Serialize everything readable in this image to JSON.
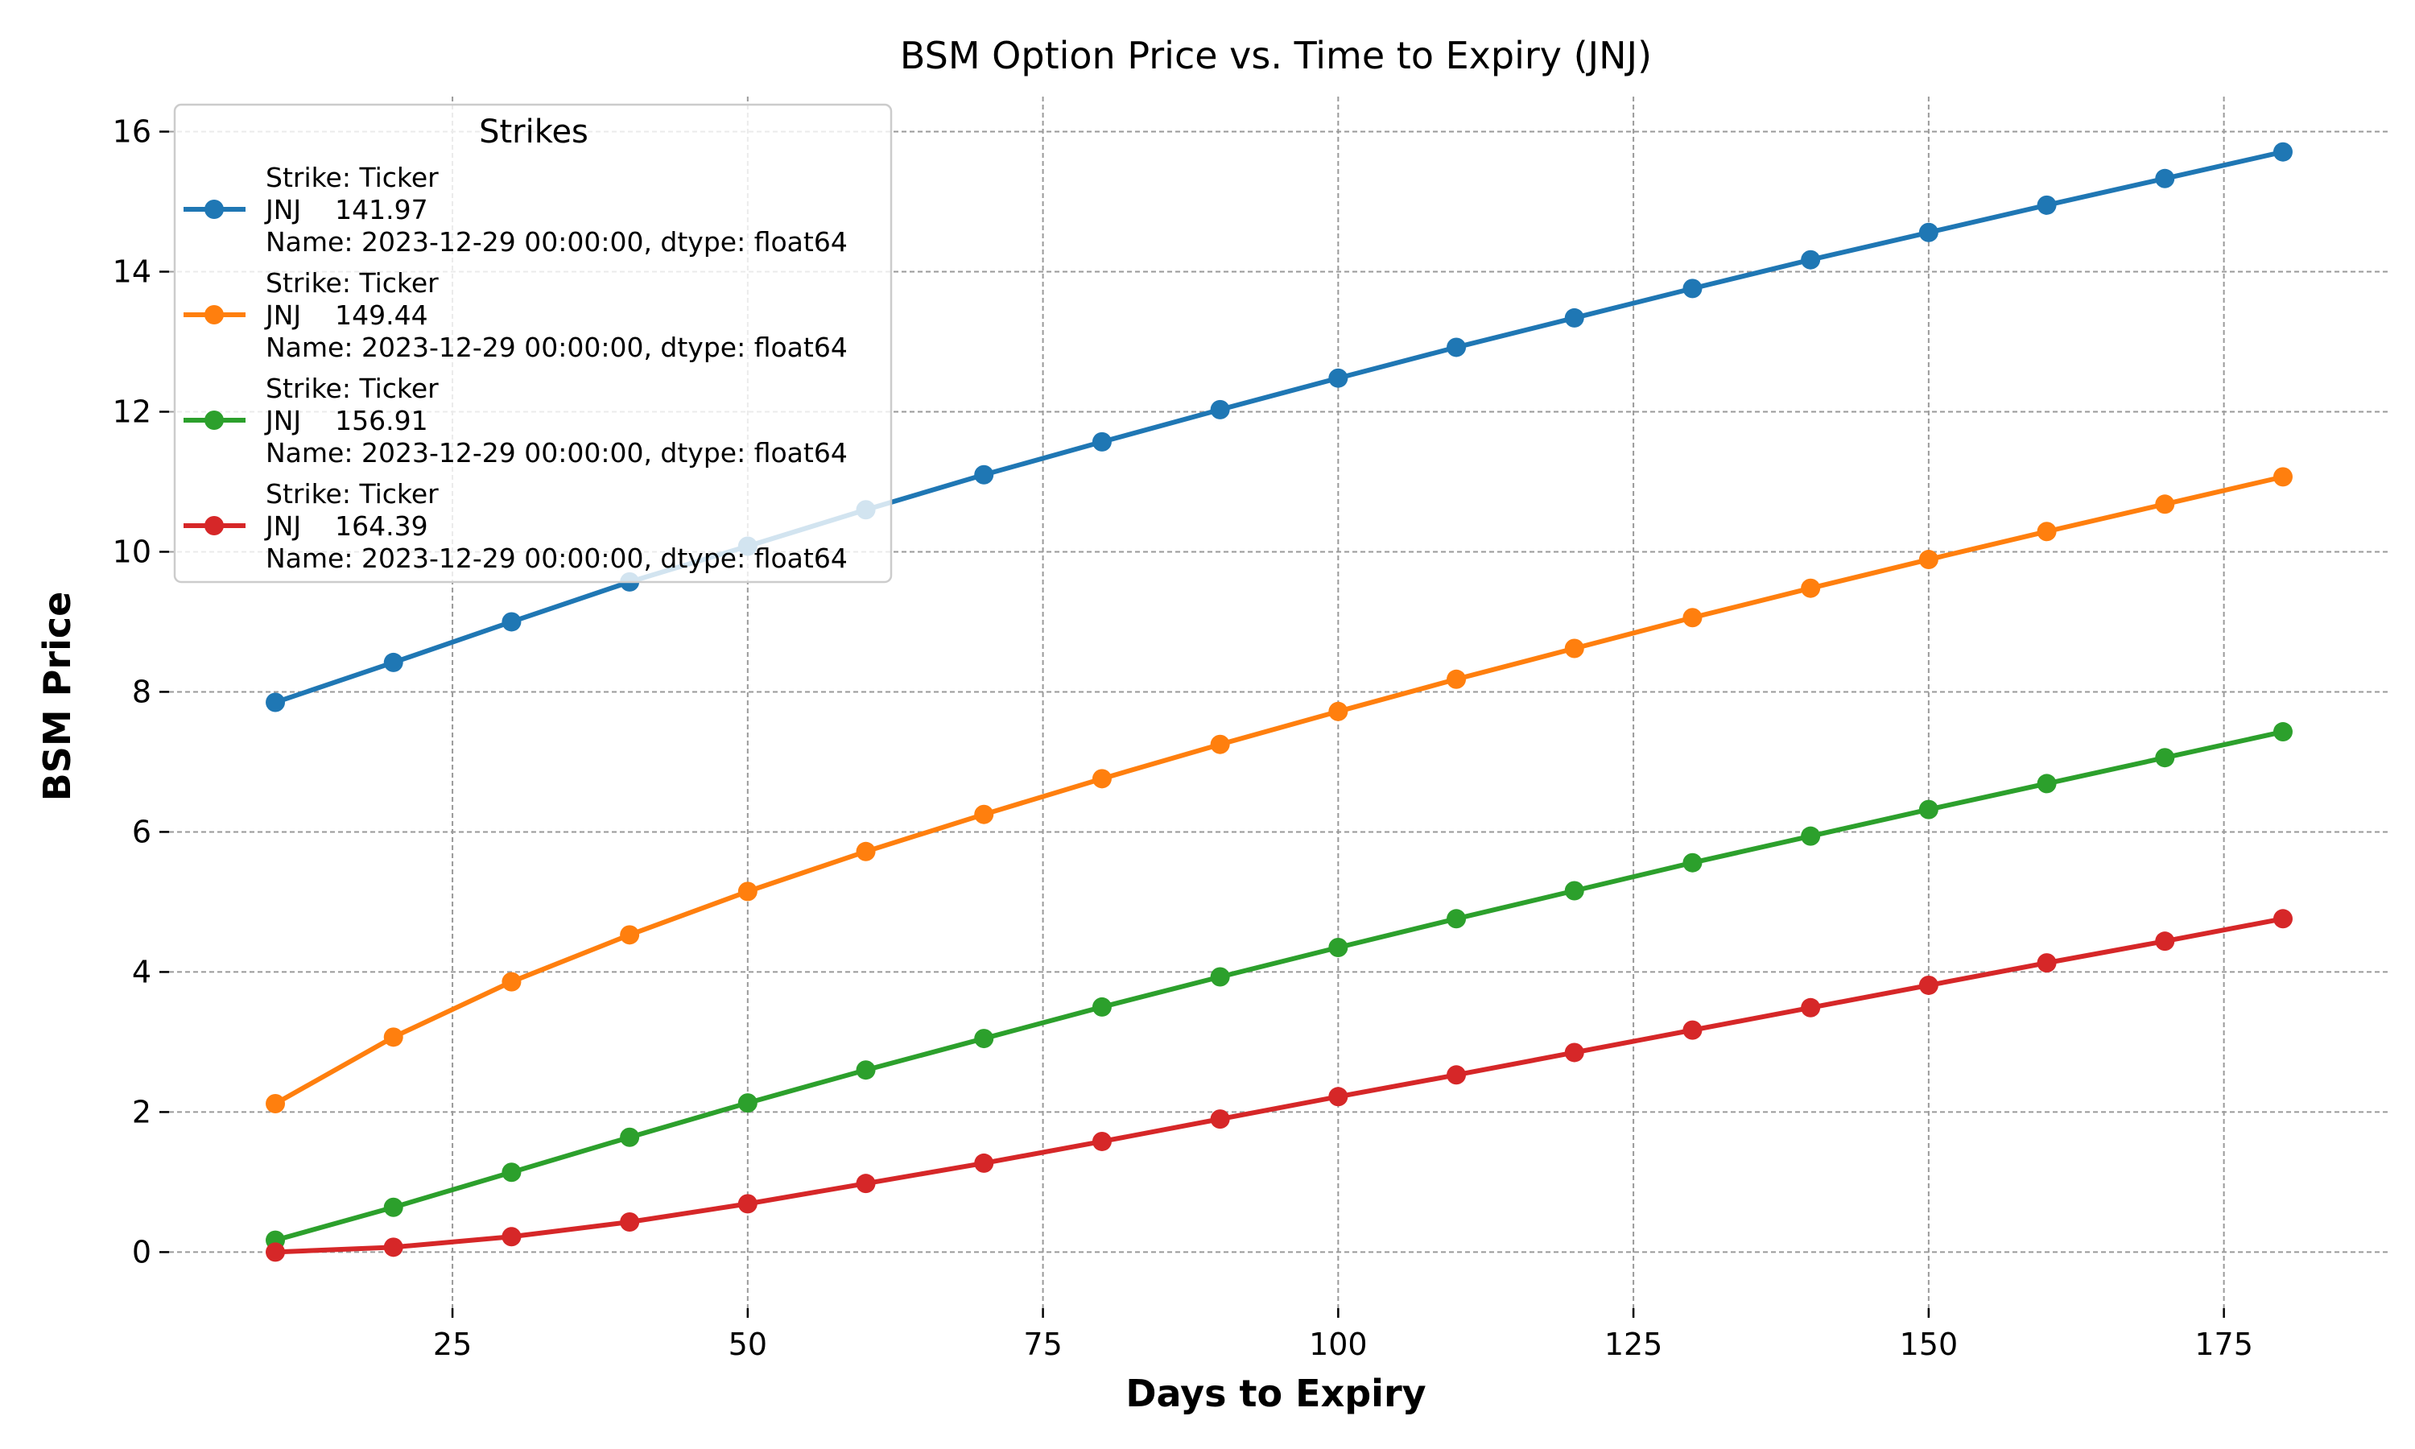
{
  "chart_data": {
    "type": "line",
    "title": "BSM Option Price vs. Time to Expiry (JNJ)",
    "xlabel": "Days to Expiry",
    "ylabel": "BSM Price",
    "xlim": [
      1,
      189
    ],
    "ylim": [
      -0.8,
      16.5
    ],
    "xticks": [
      25,
      50,
      75,
      100,
      125,
      150,
      175
    ],
    "yticks": [
      0,
      2,
      4,
      6,
      8,
      10,
      12,
      14,
      16
    ],
    "grid": true,
    "legend": {
      "title": "Strikes",
      "placement": "top-left"
    },
    "x": [
      10,
      20,
      30,
      40,
      50,
      60,
      70,
      80,
      90,
      100,
      110,
      120,
      130,
      140,
      150,
      160,
      170,
      180
    ],
    "series": [
      {
        "name_lines": [
          "Strike: Ticker",
          "JNJ    141.97",
          "Name: 2023-12-29 00:00:00, dtype: float64"
        ],
        "color": "#1f77b4",
        "values": [
          7.85,
          8.42,
          9.0,
          9.57,
          10.08,
          10.6,
          11.1,
          11.57,
          12.03,
          12.48,
          12.92,
          13.34,
          13.76,
          14.17,
          14.56,
          14.95,
          15.33,
          15.71
        ]
      },
      {
        "name_lines": [
          "Strike: Ticker",
          "JNJ    149.44",
          "Name: 2023-12-29 00:00:00, dtype: float64"
        ],
        "color": "#ff7f0e",
        "values": [
          2.12,
          3.07,
          3.86,
          4.53,
          5.15,
          5.72,
          6.25,
          6.76,
          7.25,
          7.72,
          8.18,
          8.62,
          9.06,
          9.48,
          9.89,
          10.29,
          10.68,
          11.07
        ]
      },
      {
        "name_lines": [
          "Strike: Ticker",
          "JNJ    156.91",
          "Name: 2023-12-29 00:00:00, dtype: float64"
        ],
        "color": "#2ca02c",
        "values": [
          0.17,
          0.64,
          1.14,
          1.64,
          2.13,
          2.6,
          3.05,
          3.5,
          3.93,
          4.35,
          4.76,
          5.16,
          5.56,
          5.94,
          6.32,
          6.69,
          7.06,
          7.43
        ]
      },
      {
        "name_lines": [
          "Strike: Ticker",
          "JNJ    164.39",
          "Name: 2023-12-29 00:00:00, dtype: float64"
        ],
        "color": "#d62728",
        "values": [
          0.0,
          0.07,
          0.22,
          0.43,
          0.69,
          0.98,
          1.27,
          1.58,
          1.9,
          2.22,
          2.53,
          2.85,
          3.17,
          3.49,
          3.81,
          4.13,
          4.44,
          4.76
        ]
      }
    ]
  }
}
